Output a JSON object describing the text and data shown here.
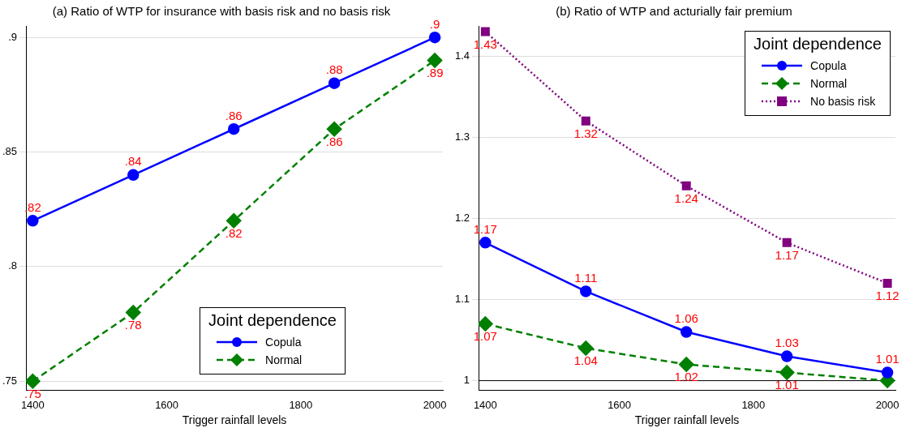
{
  "chart_data": [
    {
      "type": "line",
      "title": "(a) Ratio of WTP for insurance with basis risk and no basis risk",
      "xlabel": "Trigger rainfall levels",
      "x": [
        1400,
        1550,
        1700,
        1850,
        2000
      ],
      "xlim": [
        1390,
        2012
      ],
      "xticks": [
        1400,
        1600,
        1800,
        2000
      ],
      "ylim": [
        0.746,
        0.905
      ],
      "yticks": [
        {
          "value": 0.75,
          "label": ".75"
        },
        {
          "value": 0.8,
          "label": ".8"
        },
        {
          "value": 0.85,
          "label": ".85"
        },
        {
          "value": 0.9,
          "label": ".9"
        }
      ],
      "grid": "y",
      "legend": "bottom right",
      "legend_title": "Joint dependence",
      "series": [
        {
          "name": "Copula",
          "color": "#0000ff",
          "marker": "circle",
          "line_style": "solid",
          "values": [
            0.82,
            0.84,
            0.86,
            0.88,
            0.9
          ],
          "value_labels": [
            ".82",
            ".84",
            ".86",
            ".88",
            ".9"
          ]
        },
        {
          "name": "Normal",
          "color": "#008000",
          "marker": "diamond",
          "line_style": "dashed",
          "values": [
            0.75,
            0.78,
            0.82,
            0.86,
            0.89
          ],
          "value_labels": [
            ".75",
            ".78",
            ".82",
            ".86",
            ".89"
          ]
        }
      ]
    },
    {
      "type": "line",
      "title": "(b) Ratio of WTP and acturially fair premium",
      "xlabel": "Trigger rainfall levels",
      "x": [
        1400,
        1550,
        1700,
        1850,
        2000
      ],
      "xlim": [
        1390,
        2012
      ],
      "xticks": [
        1400,
        1600,
        1800,
        2000
      ],
      "ylim": [
        0.988,
        1.437
      ],
      "yticks": [
        1,
        1.1,
        1.2,
        1.3,
        1.4
      ],
      "grid": "y",
      "legend": "top right",
      "legend_title": "Joint dependence",
      "ref_lines": [
        {
          "axis": "y",
          "value": 1,
          "color": "#000000"
        }
      ],
      "series": [
        {
          "name": "Copula",
          "color": "#0000ff",
          "marker": "circle",
          "line_style": "solid",
          "values": [
            1.17,
            1.11,
            1.06,
            1.03,
            1.01
          ],
          "value_labels": [
            "1.17",
            "1.11",
            "1.06",
            "1.03",
            "1.01"
          ]
        },
        {
          "name": "Normal",
          "color": "#008000",
          "marker": "diamond",
          "line_style": "dashed",
          "values": [
            1.07,
            1.04,
            1.02,
            1.01,
            1.0
          ],
          "value_labels": [
            "1.07",
            "1.04",
            "1.02",
            "1.01",
            null
          ]
        },
        {
          "name": "No basis risk",
          "color": "#800080",
          "marker": "square",
          "line_style": "dotted",
          "values": [
            1.43,
            1.32,
            1.24,
            1.17,
            1.12
          ],
          "value_labels": [
            "1.43",
            "1.32",
            "1.24",
            "1.17",
            "1.12"
          ]
        }
      ]
    }
  ]
}
